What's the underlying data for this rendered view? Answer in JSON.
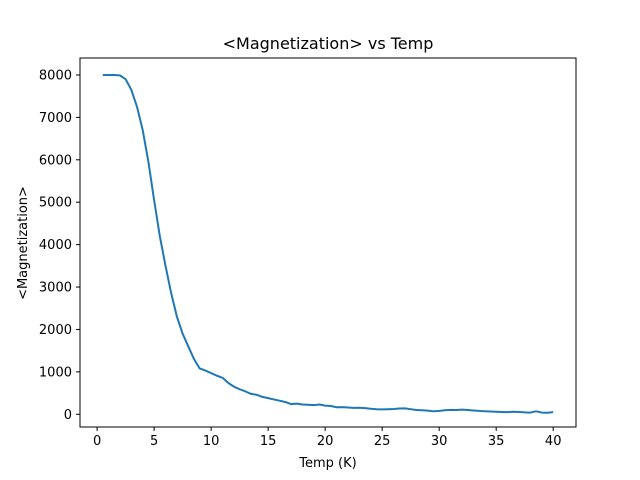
{
  "chart_data": {
    "type": "line",
    "title": "<Magnetization> vs Temp",
    "xlabel": "Temp (K)",
    "ylabel": "<Magnetization>",
    "xlim": [
      -1.5,
      42.0
    ],
    "ylim": [
      -300,
      8400
    ],
    "xticks": [
      0,
      5,
      10,
      15,
      20,
      25,
      30,
      35,
      40
    ],
    "yticks": [
      0,
      1000,
      2000,
      3000,
      4000,
      5000,
      6000,
      7000,
      8000
    ],
    "grid": false,
    "series": [
      {
        "color": "#1f77b4",
        "x": [
          0.5,
          1.0,
          1.5,
          2.0,
          2.5,
          3.0,
          3.5,
          4.0,
          4.5,
          5.0,
          5.5,
          6.0,
          6.5,
          7.0,
          7.5,
          8.0,
          8.5,
          9.0,
          9.5,
          10.0,
          10.5,
          11.0,
          11.5,
          12.0,
          12.5,
          13.0,
          13.5,
          14.0,
          14.5,
          15.0,
          15.5,
          16.0,
          16.5,
          17.0,
          17.5,
          18.0,
          18.5,
          19.0,
          19.5,
          20.0,
          20.5,
          21.0,
          21.5,
          22.0,
          22.5,
          23.0,
          23.5,
          24.0,
          24.5,
          25.0,
          25.5,
          26.0,
          26.5,
          27.0,
          27.5,
          28.0,
          28.5,
          29.0,
          29.5,
          30.0,
          30.5,
          31.0,
          31.5,
          32.0,
          32.5,
          33.0,
          33.5,
          34.0,
          34.5,
          35.0,
          35.5,
          36.0,
          36.5,
          37.0,
          37.5,
          38.0,
          38.5,
          39.0,
          39.5,
          40.0
        ],
        "y": [
          8000,
          8000,
          8000,
          7990,
          7900,
          7650,
          7250,
          6700,
          5950,
          5050,
          4200,
          3500,
          2850,
          2300,
          1900,
          1600,
          1300,
          1080,
          1030,
          970,
          910,
          860,
          740,
          650,
          590,
          540,
          480,
          460,
          410,
          380,
          350,
          320,
          290,
          240,
          250,
          230,
          225,
          215,
          230,
          205,
          195,
          165,
          170,
          160,
          150,
          155,
          145,
          130,
          120,
          115,
          120,
          125,
          135,
          140,
          120,
          100,
          95,
          85,
          70,
          80,
          95,
          105,
          100,
          110,
          100,
          90,
          80,
          70,
          65,
          60,
          55,
          50,
          60,
          55,
          45,
          40,
          70,
          40,
          35,
          50
        ]
      }
    ]
  }
}
